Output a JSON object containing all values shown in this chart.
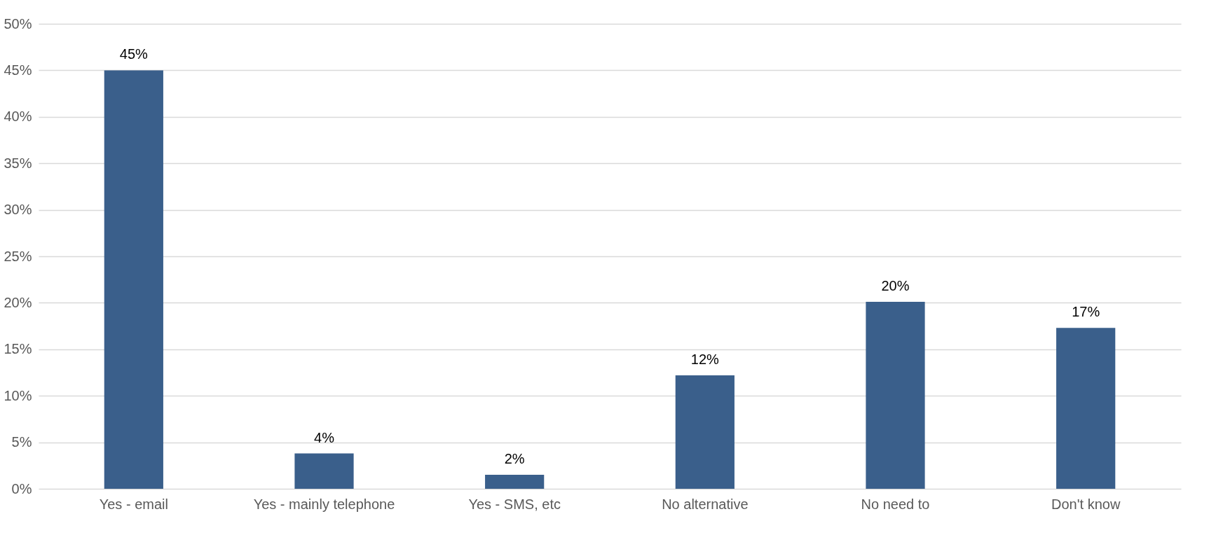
{
  "chart_data": {
    "type": "bar",
    "categories": [
      "Yes - email",
      "Yes - mainly telephone",
      "Yes - SMS, etc",
      "No alternative",
      "No need to",
      "Don't know"
    ],
    "values": [
      45,
      3.8,
      1.5,
      12.2,
      20.1,
      17.3
    ],
    "value_labels": [
      "45%",
      "4%",
      "2%",
      "12%",
      "20%",
      "17%"
    ],
    "color": "#3a5f8b",
    "ylim": [
      0,
      50
    ],
    "yticks": [
      {
        "value": 0,
        "label": "0%"
      },
      {
        "value": 5,
        "label": "5%"
      },
      {
        "value": 10,
        "label": "10%"
      },
      {
        "value": 15,
        "label": "15%"
      },
      {
        "value": 20,
        "label": "20%"
      },
      {
        "value": 25,
        "label": "25%"
      },
      {
        "value": 30,
        "label": "30%"
      },
      {
        "value": 35,
        "label": "35%"
      },
      {
        "value": 40,
        "label": "40%"
      },
      {
        "value": 45,
        "label": "45%"
      },
      {
        "value": 50,
        "label": "50%"
      }
    ],
    "grid": "y"
  }
}
